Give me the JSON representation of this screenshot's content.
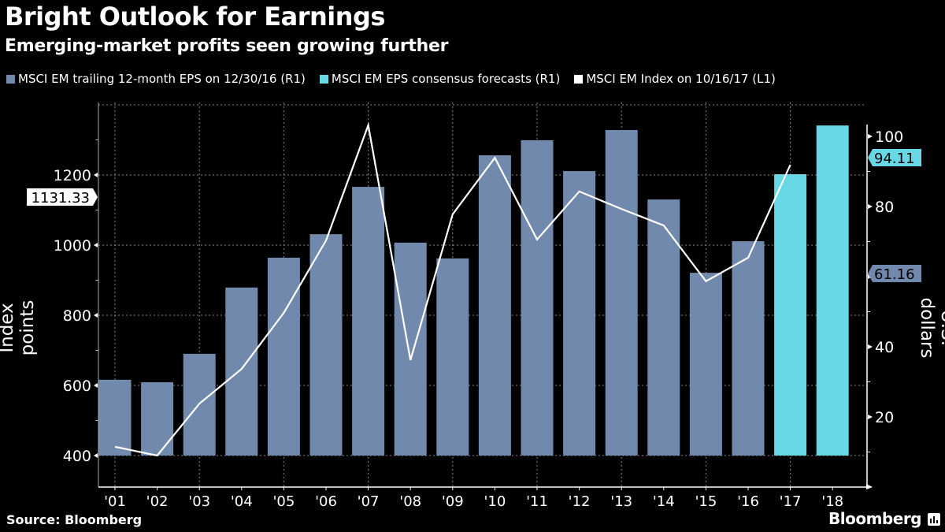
{
  "chart_data": {
    "type": "bar",
    "title": "Bright Outlook for Earnings",
    "subtitle": "Emerging-market profits seen growing further",
    "source": "Source: Bloomberg",
    "brand": "Bloomberg",
    "categories": [
      "'01",
      "'02",
      "'03",
      "'04",
      "'05",
      "'06",
      "'07",
      "'08",
      "'09",
      "'10",
      "'11",
      "'12",
      "'13",
      "'14",
      "'15",
      "'16",
      "'17",
      "'18"
    ],
    "series": [
      {
        "name": "MSCI EM trailing 12-month EPS on 12/30/16 (R1)",
        "axis": "right",
        "kind": "bar",
        "color": "#7189ad",
        "values": [
          30.6,
          29.9,
          38.0,
          56.9,
          65.4,
          72.1,
          85.6,
          69.7,
          65.2,
          94.6,
          98.9,
          90.1,
          101.8,
          82.0,
          61.1,
          70.1,
          null,
          null
        ]
      },
      {
        "name": "MSCI EM EPS consensus forecasts (R1)",
        "axis": "right",
        "kind": "bar",
        "color": "#67d8e4",
        "values": [
          null,
          null,
          null,
          null,
          null,
          null,
          null,
          null,
          null,
          null,
          null,
          null,
          null,
          null,
          null,
          null,
          89.2,
          103.1
        ]
      },
      {
        "name": "MSCI EM Index on 10/16/17 (L1)",
        "axis": "left",
        "kind": "line",
        "color": "#ffffff",
        "values": [
          425,
          400,
          548,
          647,
          807,
          1013,
          1342,
          672,
          1088,
          1249,
          1016,
          1153,
          1103,
          1056,
          897,
          964,
          1229,
          null
        ]
      }
    ],
    "left_axis": {
      "label": "Index points",
      "ticks": [
        400,
        600,
        800,
        1000,
        1200
      ],
      "range": [
        300,
        1400
      ]
    },
    "right_axis": {
      "label": "U.S. dollars",
      "ticks": [
        20,
        40,
        80,
        100
      ],
      "range": [
        0,
        107
      ]
    },
    "annotations": [
      {
        "text": "1131.33",
        "axis": "left",
        "value": 1131.33,
        "color": "#ffffff"
      },
      {
        "text": "94.11",
        "axis": "right",
        "value": 94.11,
        "color": "#67d8e4"
      },
      {
        "text": "61.16",
        "axis": "right",
        "value": 61.16,
        "color": "#7189ad"
      }
    ],
    "grid": true,
    "legend_position": "top-left"
  }
}
